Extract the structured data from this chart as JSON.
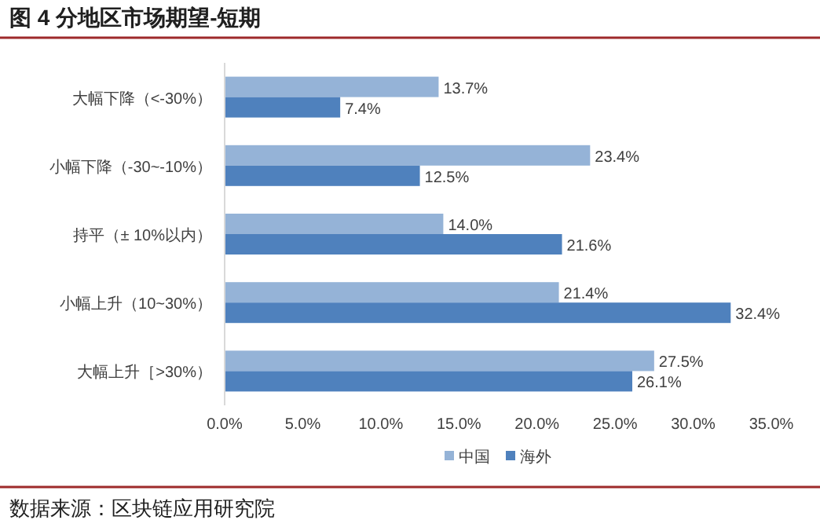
{
  "chart_data": {
    "type": "bar",
    "orientation": "horizontal",
    "title": "图 4 分地区市场期望-短期",
    "categories": [
      "大幅下降（<-30%）",
      "小幅下降（-30~-10%）",
      "持平（± 10%以内）",
      "小幅上升（10~30%）",
      "大幅上升［>30%）"
    ],
    "series": [
      {
        "name": "中国",
        "color": "#95b3d7",
        "values": [
          13.7,
          23.4,
          14.0,
          21.4,
          27.5
        ],
        "value_labels": [
          "13.7%",
          "23.4%",
          "14.0%",
          "21.4%",
          "27.5%"
        ]
      },
      {
        "name": "海外",
        "color": "#4f81bd",
        "values": [
          7.4,
          12.5,
          21.6,
          32.4,
          26.1
        ],
        "value_labels": [
          "7.4%",
          "12.5%",
          "21.6%",
          "32.4%",
          "26.1%"
        ]
      }
    ],
    "xlim": [
      0,
      35
    ],
    "xticks": [
      {
        "value": 0,
        "label": "0.0%"
      },
      {
        "value": 5,
        "label": "5.0%"
      },
      {
        "value": 10,
        "label": "10.0%"
      },
      {
        "value": 15,
        "label": "15.0%"
      },
      {
        "value": 20,
        "label": "20.0%"
      },
      {
        "value": 25,
        "label": "25.0%"
      },
      {
        "value": 30,
        "label": "30.0%"
      },
      {
        "value": 35,
        "label": "35.0%"
      }
    ],
    "grid": false,
    "legend": "bottom",
    "annotations": [
      "数据来源：区块链应用研究院"
    ]
  }
}
